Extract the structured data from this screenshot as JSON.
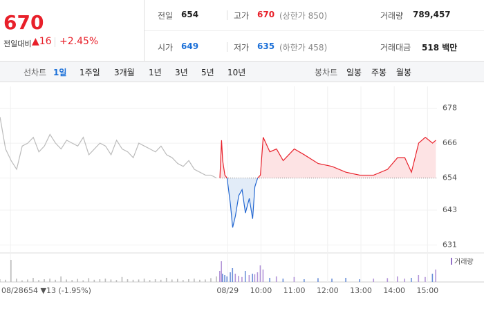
{
  "header": {
    "price": "670",
    "change_label": "전일대비",
    "change": "▲16",
    "change_rate": "+2.45%",
    "stats": [
      {
        "label": "전일",
        "value": "654",
        "color": "#222222"
      },
      {
        "label": "고가",
        "value": "670",
        "note": "(상한가 850)",
        "color": "#e8202a"
      },
      {
        "label": "거래량",
        "value": "789,457",
        "color": "#222222"
      },
      {
        "label": "시가",
        "value": "649",
        "color": "#1a6fd8"
      },
      {
        "label": "저가",
        "value": "635",
        "note": "(하한가 458)",
        "color": "#1a6fd8"
      },
      {
        "label": "거래대금",
        "value": "518 백만",
        "color": "#222222"
      }
    ]
  },
  "toolbar": {
    "line_label": "선차트",
    "line_periods": [
      "1일",
      "1주일",
      "3개월",
      "1년",
      "3년",
      "5년",
      "10년"
    ],
    "active_period": 0,
    "candle_label": "봉차트",
    "candle_periods": [
      "일봉",
      "주봉",
      "월봉"
    ]
  },
  "chart_data": {
    "type": "line",
    "baseline": 654,
    "prev_summary": "654 ▼13 (-1.95%)",
    "volume_legend": "거래량",
    "xlim": [
      -410,
      377
    ],
    "ylim": [
      628.5,
      685.5
    ],
    "yticks": [
      631,
      643,
      654,
      666,
      678
    ],
    "xticks": [
      {
        "value": -391,
        "label": "08/28"
      },
      {
        "value": 0,
        "label": "08/29"
      },
      {
        "value": 60,
        "label": "10:00"
      },
      {
        "value": 120,
        "label": "11:00"
      },
      {
        "value": 180,
        "label": "12:00"
      },
      {
        "value": 240,
        "label": "13:00"
      },
      {
        "value": 300,
        "label": "14:00"
      },
      {
        "value": 360,
        "label": "15:00"
      }
    ],
    "volume_ylim": [
      0,
      100
    ],
    "prev": {
      "color": "#bbbbbb",
      "x": [
        -410,
        -400,
        -390,
        -380,
        -370,
        -360,
        -350,
        -340,
        -330,
        -320,
        -310,
        -300,
        -290,
        -280,
        -270,
        -260,
        -250,
        -240,
        -230,
        -220,
        -210,
        -200,
        -190,
        -180,
        -170,
        -160,
        -150,
        -140,
        -130,
        -120,
        -110,
        -100,
        -90,
        -80,
        -70,
        -60,
        -50,
        -40,
        -30,
        -20
      ],
      "values": [
        675,
        664,
        660,
        657,
        665,
        666,
        668,
        663,
        665,
        669,
        666,
        664,
        667,
        666,
        665,
        668,
        662,
        664,
        666,
        665,
        662,
        667,
        664,
        663,
        661,
        666,
        665,
        664,
        663,
        665,
        662,
        661,
        659,
        658,
        660,
        657,
        656,
        655,
        655,
        654
      ],
      "volume": [
        10,
        8,
        80,
        12,
        6,
        9,
        15,
        7,
        10,
        12,
        8,
        20,
        9,
        7,
        11,
        6,
        14,
        8,
        10,
        12,
        9,
        7,
        18,
        10,
        8,
        9,
        12,
        7,
        10,
        8,
        15,
        9,
        11,
        7,
        10,
        12,
        8,
        9,
        14,
        20
      ]
    },
    "today": {
      "up_color": "#e8202a",
      "down_color": "#2367d1",
      "up_fill": "#fde3e4",
      "down_fill": "#e2ecf8",
      "x": [
        -14,
        -11,
        -9,
        -5,
        -1,
        5,
        9,
        14,
        20,
        26,
        32,
        39,
        45,
        49,
        54,
        59,
        64,
        76,
        88,
        100,
        120,
        138,
        163,
        188,
        213,
        238,
        263,
        288,
        306,
        319,
        331,
        344,
        356,
        369,
        375
      ],
      "values": [
        654,
        667,
        660,
        655,
        654,
        645,
        637,
        641,
        648,
        650,
        642,
        647,
        640,
        651,
        654,
        655,
        668,
        663,
        664,
        660,
        664,
        662,
        659,
        658,
        656,
        655,
        655,
        657,
        661,
        661,
        656,
        666,
        668,
        666,
        667
      ],
      "volume": [
        40,
        75,
        30,
        25,
        20,
        35,
        50,
        30,
        22,
        18,
        40,
        25,
        30,
        28,
        35,
        60,
        45,
        15,
        20,
        12,
        18,
        10,
        14,
        12,
        15,
        10,
        12,
        14,
        20,
        12,
        15,
        25,
        18,
        30,
        45
      ]
    }
  }
}
